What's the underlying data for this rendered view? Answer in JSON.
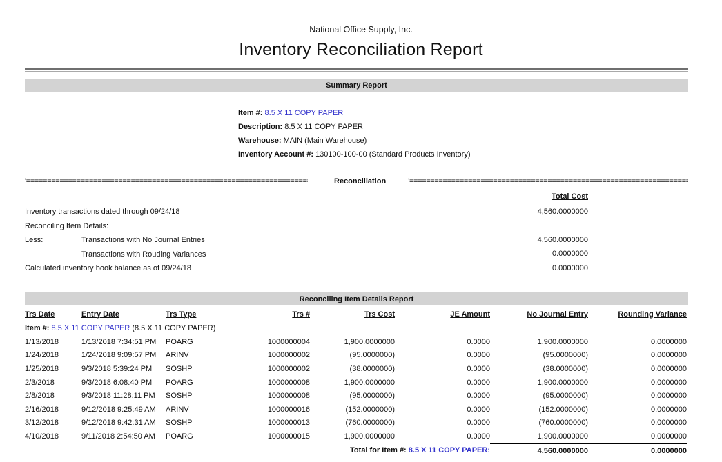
{
  "header": {
    "company": "National Office Supply, Inc.",
    "title": "Inventory Reconciliation Report"
  },
  "colors": {
    "link_blue": "#3333cc",
    "section_bar_gray": "#d3d3d3"
  },
  "summary": {
    "bar_label": "Summary Report",
    "fields": [
      {
        "label": "Item #:",
        "value": "8.5 X 11 COPY PAPER",
        "is_link": true
      },
      {
        "label": "Description:",
        "value": "8.5 X 11 COPY PAPER",
        "is_link": false
      },
      {
        "label": "Warehouse:",
        "value": "MAIN (Main Warehouse)",
        "is_link": false
      },
      {
        "label": "Inventory Account #:",
        "value": "130100-100-00 (Standard Products Inventory)",
        "is_link": false
      }
    ]
  },
  "reconciliation": {
    "divider_left": "'========================================================================",
    "divider_label": "Reconciliation",
    "divider_right": "'==========================================================================",
    "column_header": "Total Cost",
    "rows": [
      {
        "label": "Inventory transactions dated through 09/24/18",
        "indent_label": "",
        "value": "4,560.0000000"
      },
      {
        "label": "Reconciling Item Details:",
        "indent_label": "",
        "value": ""
      },
      {
        "label": "Less:",
        "indent_label": "Transactions with No Journal Entries",
        "value": "4,560.0000000"
      },
      {
        "label": "",
        "indent_label": "Transactions with Rouding Variances",
        "value": "0.0000000"
      },
      {
        "label": "Calculated inventory book balance as of 09/24/18",
        "indent_label": "",
        "value": "0.0000000"
      }
    ]
  },
  "details": {
    "bar_label": "Reconciling Item Details Report",
    "columns": [
      "Trs Date",
      "Entry Date",
      "Trs Type",
      "Trs #",
      "Trs Cost",
      "JE Amount",
      "No Journal Entry",
      "Rounding Variance"
    ],
    "item_line": {
      "label": "Item #:",
      "item": "8.5 X 11 COPY PAPER",
      "suffix": "(8.5 X 11 COPY PAPER)"
    },
    "rows": [
      {
        "trs_date": "1/13/2018",
        "entry_date": "1/13/2018 7:34:51 PM",
        "trs_type": "POARG",
        "trs_num": "1000000004",
        "trs_cost": "1,900.0000000",
        "je_amount": "0.0000",
        "no_journal_entry": "1,900.0000000",
        "rounding_variance": "0.0000000"
      },
      {
        "trs_date": "1/24/2018",
        "entry_date": "1/24/2018 9:09:57 PM",
        "trs_type": "ARINV",
        "trs_num": "1000000002",
        "trs_cost": "(95.0000000)",
        "je_amount": "0.0000",
        "no_journal_entry": "(95.0000000)",
        "rounding_variance": "0.0000000"
      },
      {
        "trs_date": "1/25/2018",
        "entry_date": "9/3/2018 5:39:24 PM",
        "trs_type": "SOSHP",
        "trs_num": "1000000002",
        "trs_cost": "(38.0000000)",
        "je_amount": "0.0000",
        "no_journal_entry": "(38.0000000)",
        "rounding_variance": "0.0000000"
      },
      {
        "trs_date": "2/3/2018",
        "entry_date": "9/3/2018 6:08:40 PM",
        "trs_type": "POARG",
        "trs_num": "1000000008",
        "trs_cost": "1,900.0000000",
        "je_amount": "0.0000",
        "no_journal_entry": "1,900.0000000",
        "rounding_variance": "0.0000000"
      },
      {
        "trs_date": "2/8/2018",
        "entry_date": "9/3/2018 11:28:11 PM",
        "trs_type": "SOSHP",
        "trs_num": "1000000008",
        "trs_cost": "(95.0000000)",
        "je_amount": "0.0000",
        "no_journal_entry": "(95.0000000)",
        "rounding_variance": "0.0000000"
      },
      {
        "trs_date": "2/16/2018",
        "entry_date": "9/12/2018 9:25:49 AM",
        "trs_type": "ARINV",
        "trs_num": "1000000016",
        "trs_cost": "(152.0000000)",
        "je_amount": "0.0000",
        "no_journal_entry": "(152.0000000)",
        "rounding_variance": "0.0000000"
      },
      {
        "trs_date": "3/12/2018",
        "entry_date": "9/12/2018 9:42:31 AM",
        "trs_type": "SOSHP",
        "trs_num": "1000000013",
        "trs_cost": "(760.0000000)",
        "je_amount": "0.0000",
        "no_journal_entry": "(760.0000000)",
        "rounding_variance": "0.0000000"
      },
      {
        "trs_date": "4/10/2018",
        "entry_date": "9/11/2018 2:54:50 AM",
        "trs_type": "POARG",
        "trs_num": "1000000015",
        "trs_cost": "1,900.0000000",
        "je_amount": "0.0000",
        "no_journal_entry": "1,900.0000000",
        "rounding_variance": "0.0000000"
      }
    ],
    "total": {
      "label": "Total for Item #:",
      "item": "8.5 X 11 COPY PAPER:",
      "no_journal_entry": "4,560.0000000",
      "rounding_variance": "0.0000000"
    }
  }
}
